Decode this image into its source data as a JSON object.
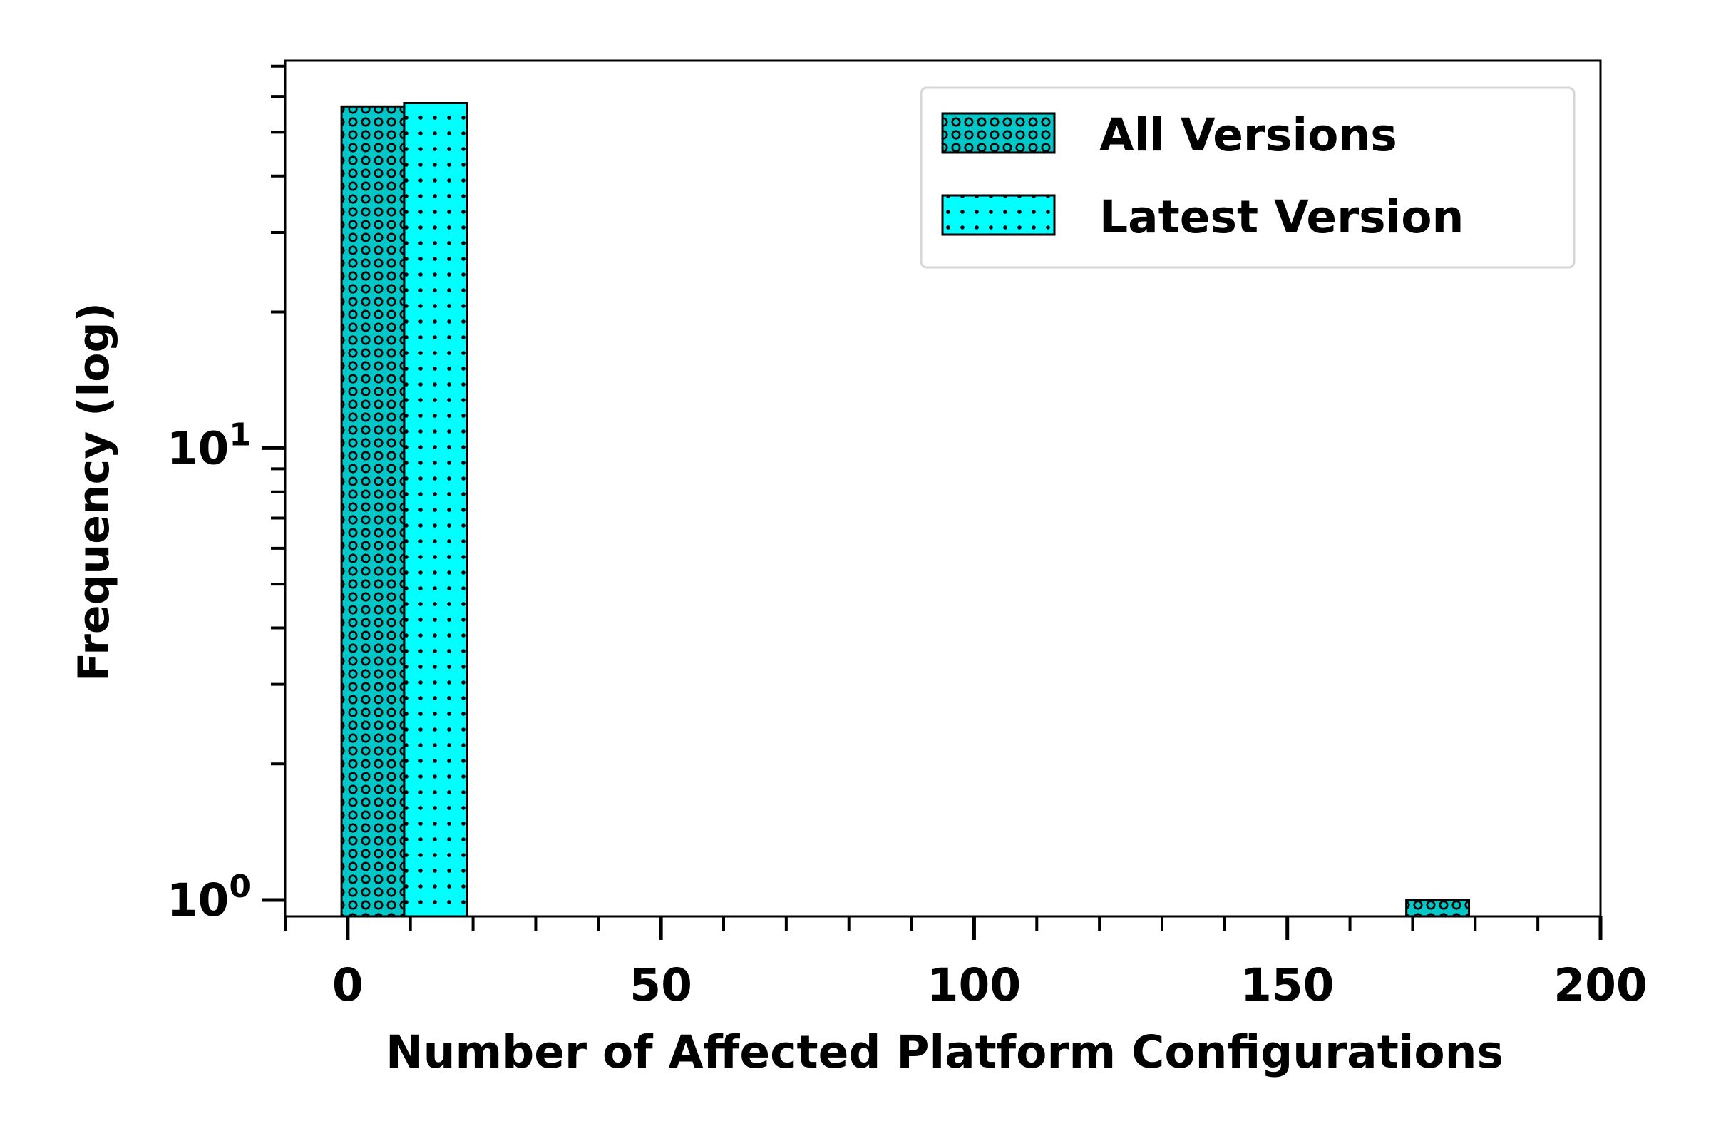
{
  "chart_data": {
    "type": "bar",
    "xlabel": "Number of Affected Platform Configurations",
    "ylabel": "Frequency (log)",
    "x_scale": "linear",
    "y_scale": "log",
    "xlim": [
      -10,
      200
    ],
    "ylim": [
      0.92,
      72
    ],
    "x_ticks": [
      0,
      50,
      100,
      150,
      200
    ],
    "x_tick_labels": [
      "0",
      "50",
      "100",
      "150",
      "200"
    ],
    "y_ticks": [
      {
        "base": "10",
        "exp": "0",
        "value": 1
      },
      {
        "base": "10",
        "exp": "1",
        "value": 10
      }
    ],
    "legend": {
      "position": "upper-right"
    },
    "series": [
      {
        "name": "All Versions",
        "color": "#00c8c8",
        "hatch": "circles",
        "bars": [
          {
            "x_start": -1,
            "x_end": 9,
            "value": 57
          },
          {
            "x_start": 169,
            "x_end": 179,
            "value": 1
          }
        ]
      },
      {
        "name": "Latest Version",
        "color": "#00ffff",
        "hatch": "dots",
        "bars": [
          {
            "x_start": 9,
            "x_end": 19,
            "value": 58
          }
        ]
      }
    ],
    "grid": false
  }
}
